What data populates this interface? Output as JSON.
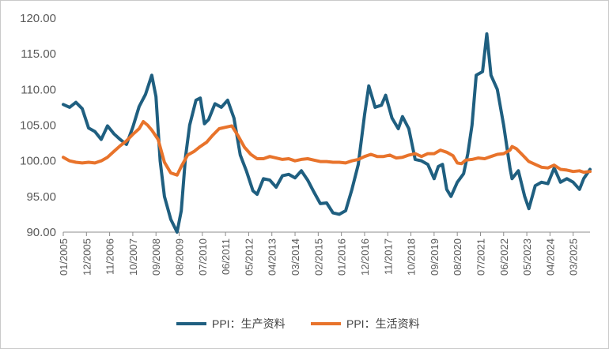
{
  "chart_data": {
    "type": "line",
    "title": "",
    "xlabel": "",
    "ylabel": "",
    "ylim": [
      90,
      120
    ],
    "y_ticks": [
      "90.00",
      "95.00",
      "100.00",
      "105.00",
      "110.00",
      "115.00",
      "120.00"
    ],
    "x_ticks": [
      "01/2005",
      "12/2005",
      "11/2006",
      "10/2007",
      "09/2008",
      "08/2009",
      "07/2010",
      "06/2011",
      "05/2012",
      "04/2013",
      "03/2014",
      "02/2015",
      "01/2016",
      "12/2016",
      "11/2017",
      "10/2018",
      "09/2019",
      "08/2020",
      "07/2021",
      "06/2022",
      "05/2023",
      "04/2024",
      "03/2025"
    ],
    "x_range": [
      "01/2005",
      "11/2025"
    ],
    "grid": false,
    "legend_position": "bottom",
    "series": [
      {
        "name": "PPI：生产资料",
        "color": "#1f5f80",
        "points": [
          [
            "01/2005",
            107.9
          ],
          [
            "04/2005",
            107.5
          ],
          [
            "07/2005",
            108.2
          ],
          [
            "10/2005",
            107.3
          ],
          [
            "01/2006",
            104.6
          ],
          [
            "04/2006",
            104.1
          ],
          [
            "07/2006",
            103.0
          ],
          [
            "10/2006",
            104.9
          ],
          [
            "01/2007",
            103.8
          ],
          [
            "04/2007",
            103.0
          ],
          [
            "07/2007",
            102.3
          ],
          [
            "10/2007",
            104.7
          ],
          [
            "01/2008",
            107.6
          ],
          [
            "04/2008",
            109.3
          ],
          [
            "07/2008",
            112.0
          ],
          [
            "09/2008",
            109.0
          ],
          [
            "11/2008",
            100.0
          ],
          [
            "01/2009",
            95.0
          ],
          [
            "04/2009",
            91.8
          ],
          [
            "07/2009",
            90.0
          ],
          [
            "09/2009",
            93.0
          ],
          [
            "11/2009",
            100.5
          ],
          [
            "01/2010",
            105.0
          ],
          [
            "04/2010",
            108.5
          ],
          [
            "06/2010",
            108.8
          ],
          [
            "08/2010",
            105.2
          ],
          [
            "10/2010",
            105.8
          ],
          [
            "01/2011",
            108.0
          ],
          [
            "04/2011",
            107.5
          ],
          [
            "07/2011",
            108.5
          ],
          [
            "10/2011",
            106.0
          ],
          [
            "01/2012",
            100.8
          ],
          [
            "04/2012",
            98.5
          ],
          [
            "07/2012",
            95.8
          ],
          [
            "09/2012",
            95.3
          ],
          [
            "12/2012",
            97.5
          ],
          [
            "03/2013",
            97.3
          ],
          [
            "06/2013",
            96.3
          ],
          [
            "09/2013",
            97.9
          ],
          [
            "12/2013",
            98.1
          ],
          [
            "03/2014",
            97.6
          ],
          [
            "06/2014",
            98.6
          ],
          [
            "09/2014",
            97.3
          ],
          [
            "12/2014",
            95.6
          ],
          [
            "03/2015",
            94.0
          ],
          [
            "06/2015",
            94.1
          ],
          [
            "09/2015",
            92.7
          ],
          [
            "12/2015",
            92.5
          ],
          [
            "03/2016",
            93.0
          ],
          [
            "06/2016",
            96.0
          ],
          [
            "09/2016",
            99.5
          ],
          [
            "12/2016",
            106.5
          ],
          [
            "02/2017",
            110.5
          ],
          [
            "05/2017",
            107.5
          ],
          [
            "08/2017",
            107.8
          ],
          [
            "10/2017",
            109.2
          ],
          [
            "01/2018",
            106.0
          ],
          [
            "04/2018",
            104.5
          ],
          [
            "06/2018",
            106.2
          ],
          [
            "09/2018",
            104.5
          ],
          [
            "12/2018",
            100.2
          ],
          [
            "03/2019",
            100.0
          ],
          [
            "06/2019",
            99.5
          ],
          [
            "09/2019",
            97.5
          ],
          [
            "11/2019",
            99.2
          ],
          [
            "01/2020",
            99.5
          ],
          [
            "03/2020",
            96.0
          ],
          [
            "05/2020",
            95.0
          ],
          [
            "08/2020",
            97.0
          ],
          [
            "11/2020",
            98.2
          ],
          [
            "01/2021",
            101.0
          ],
          [
            "03/2021",
            105.0
          ],
          [
            "05/2021",
            112.0
          ],
          [
            "08/2021",
            112.5
          ],
          [
            "10/2021",
            117.8
          ],
          [
            "12/2021",
            112.0
          ],
          [
            "03/2022",
            110.0
          ],
          [
            "06/2022",
            105.0
          ],
          [
            "09/2022",
            99.0
          ],
          [
            "10/2022",
            97.5
          ],
          [
            "01/2023",
            98.6
          ],
          [
            "04/2023",
            95.0
          ],
          [
            "06/2023",
            93.3
          ],
          [
            "09/2023",
            96.5
          ],
          [
            "12/2023",
            97.0
          ],
          [
            "03/2024",
            96.8
          ],
          [
            "06/2024",
            99.0
          ],
          [
            "09/2024",
            97.0
          ],
          [
            "12/2024",
            97.5
          ],
          [
            "03/2025",
            97.0
          ],
          [
            "06/2025",
            96.0
          ],
          [
            "08/2025",
            97.5
          ],
          [
            "11/2025",
            98.8
          ]
        ]
      },
      {
        "name": "PPI：生活资料",
        "color": "#e8732b",
        "points": [
          [
            "01/2005",
            100.5
          ],
          [
            "04/2005",
            100.0
          ],
          [
            "07/2005",
            99.8
          ],
          [
            "10/2005",
            99.7
          ],
          [
            "01/2006",
            99.8
          ],
          [
            "04/2006",
            99.7
          ],
          [
            "07/2006",
            100.0
          ],
          [
            "10/2006",
            100.5
          ],
          [
            "01/2007",
            101.3
          ],
          [
            "04/2007",
            102.1
          ],
          [
            "07/2007",
            102.8
          ],
          [
            "10/2007",
            103.7
          ],
          [
            "01/2008",
            104.5
          ],
          [
            "03/2008",
            105.5
          ],
          [
            "05/2008",
            105.0
          ],
          [
            "07/2008",
            104.3
          ],
          [
            "10/2008",
            103.0
          ],
          [
            "01/2009",
            99.8
          ],
          [
            "04/2009",
            98.3
          ],
          [
            "07/2009",
            98.0
          ],
          [
            "09/2009",
            99.2
          ],
          [
            "12/2009",
            100.8
          ],
          [
            "03/2010",
            101.3
          ],
          [
            "06/2010",
            102.0
          ],
          [
            "09/2010",
            102.6
          ],
          [
            "12/2010",
            103.6
          ],
          [
            "03/2011",
            104.5
          ],
          [
            "06/2011",
            104.7
          ],
          [
            "09/2011",
            104.9
          ],
          [
            "12/2011",
            103.5
          ],
          [
            "03/2012",
            101.9
          ],
          [
            "06/2012",
            100.9
          ],
          [
            "09/2012",
            100.3
          ],
          [
            "12/2012",
            100.3
          ],
          [
            "03/2013",
            100.6
          ],
          [
            "06/2013",
            100.4
          ],
          [
            "09/2013",
            100.2
          ],
          [
            "12/2013",
            100.3
          ],
          [
            "03/2014",
            100.0
          ],
          [
            "06/2014",
            100.2
          ],
          [
            "09/2014",
            100.3
          ],
          [
            "12/2014",
            100.1
          ],
          [
            "03/2015",
            99.9
          ],
          [
            "06/2015",
            99.9
          ],
          [
            "09/2015",
            99.8
          ],
          [
            "12/2015",
            99.8
          ],
          [
            "03/2016",
            99.7
          ],
          [
            "06/2016",
            100.0
          ],
          [
            "09/2016",
            100.2
          ],
          [
            "12/2016",
            100.6
          ],
          [
            "03/2017",
            100.9
          ],
          [
            "06/2017",
            100.6
          ],
          [
            "09/2017",
            100.6
          ],
          [
            "12/2017",
            100.8
          ],
          [
            "03/2018",
            100.4
          ],
          [
            "06/2018",
            100.5
          ],
          [
            "09/2018",
            100.8
          ],
          [
            "12/2018",
            101.0
          ],
          [
            "03/2019",
            100.6
          ],
          [
            "06/2019",
            101.0
          ],
          [
            "09/2019",
            101.0
          ],
          [
            "12/2019",
            101.5
          ],
          [
            "03/2020",
            101.2
          ],
          [
            "06/2020",
            100.7
          ],
          [
            "08/2020",
            99.7
          ],
          [
            "10/2020",
            99.6
          ],
          [
            "12/2020",
            100.1
          ],
          [
            "03/2021",
            100.2
          ],
          [
            "06/2021",
            100.4
          ],
          [
            "09/2021",
            100.3
          ],
          [
            "12/2021",
            100.6
          ],
          [
            "03/2022",
            100.9
          ],
          [
            "06/2022",
            101.0
          ],
          [
            "09/2022",
            101.5
          ],
          [
            "10/2022",
            102.0
          ],
          [
            "12/2022",
            101.7
          ],
          [
            "03/2023",
            100.8
          ],
          [
            "06/2023",
            99.9
          ],
          [
            "09/2023",
            99.5
          ],
          [
            "12/2023",
            99.1
          ],
          [
            "03/2024",
            99.0
          ],
          [
            "06/2024",
            99.4
          ],
          [
            "09/2024",
            98.8
          ],
          [
            "12/2024",
            98.7
          ],
          [
            "03/2025",
            98.5
          ],
          [
            "06/2025",
            98.6
          ],
          [
            "08/2025",
            98.4
          ],
          [
            "11/2025",
            98.5
          ]
        ]
      }
    ]
  }
}
